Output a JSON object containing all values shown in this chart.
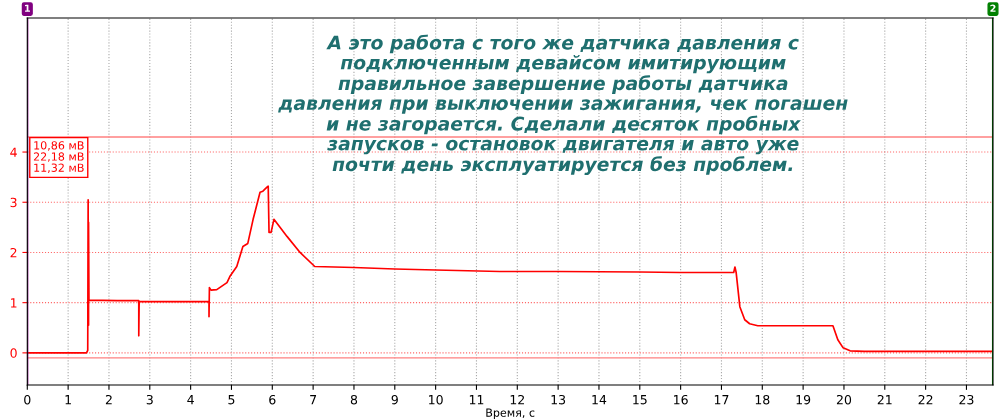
{
  "chart_data": {
    "type": "line",
    "xlabel": "Время, с",
    "xlim": [
      0,
      23.65
    ],
    "ylim": [
      -0.64,
      6.67
    ],
    "xticks": [
      0,
      1,
      2,
      3,
      4,
      5,
      6,
      7,
      8,
      9,
      10,
      11,
      12,
      13,
      14,
      15,
      16,
      17,
      18,
      19,
      20,
      21,
      22,
      23
    ],
    "yticks": [
      0,
      1,
      2,
      3,
      4
    ],
    "grid": true,
    "series": [
      {
        "color": "#ff0000",
        "x": [
          0,
          1.45,
          1.48,
          1.49,
          1.5,
          1.5,
          1.51,
          2.2,
          2.73,
          2.73,
          2.74,
          2.75,
          4.45,
          4.45,
          4.46,
          4.5,
          4.64,
          4.89,
          4.96,
          5.13,
          5.28,
          5.4,
          5.53,
          5.7,
          5.77,
          5.87,
          5.9,
          5.92,
          5.97,
          6.04,
          6.36,
          6.68,
          7.04,
          8,
          9,
          10,
          11.57,
          13,
          15,
          15.98,
          17.3,
          17.33,
          17.36,
          17.45,
          17.57,
          17.69,
          17.89,
          19.73,
          19.85,
          19.98,
          20.15,
          20.5,
          23.65
        ],
        "values": [
          0,
          0,
          0.05,
          3.05,
          0.55,
          2.6,
          1.05,
          1.04,
          1.04,
          0.34,
          1.02,
          1.02,
          1.02,
          0.72,
          1.3,
          1.25,
          1.26,
          1.4,
          1.52,
          1.72,
          2.12,
          2.18,
          2.66,
          3.2,
          3.22,
          3.3,
          3.32,
          2.4,
          2.4,
          2.66,
          2.32,
          2.0,
          1.72,
          1.7,
          1.67,
          1.65,
          1.62,
          1.62,
          1.61,
          1.6,
          1.6,
          1.71,
          1.6,
          0.92,
          0.66,
          0.58,
          0.54,
          0.54,
          0.26,
          0.1,
          0.04,
          0.03,
          0.03
        ]
      }
    ],
    "ref_lines": [
      {
        "axis": "y",
        "value": 4.3,
        "color": "#ff8080"
      },
      {
        "axis": "y",
        "value": -0.1,
        "color": "#ff8080"
      },
      {
        "axis": "x",
        "value": 0,
        "color": "#800080"
      },
      {
        "axis": "x",
        "value": 23.65,
        "color": "#008000"
      }
    ],
    "annotations": [
      "А это работа с того же датчика давления с\nподключенным девайсом имитирующим\nправильное завершение работы датчика\nдавления при выключении зажигания, чек погашен\nи не загорается. Сделали десяток пробных\nзапусков - остановок двигателя и авто уже\nпочти день эксплуатируется без проблем.",
      "10,86 мВ",
      "22,18 мВ",
      "11,32 мВ",
      "1",
      "2"
    ]
  }
}
